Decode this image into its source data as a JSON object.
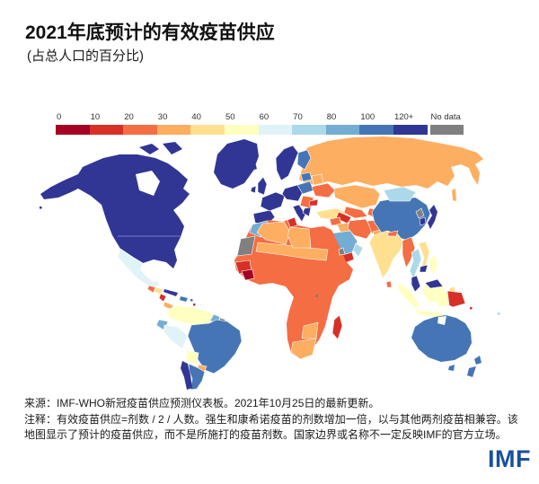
{
  "header": {
    "title": "2021年底预计的有效疫苗供应",
    "subtitle": "(占总人口的百分比)"
  },
  "legend": {
    "bins": [
      {
        "label": "0",
        "color": "#a50026"
      },
      {
        "label": "10",
        "color": "#d73027"
      },
      {
        "label": "20",
        "color": "#f46d43"
      },
      {
        "label": "30",
        "color": "#fdae61"
      },
      {
        "label": "40",
        "color": "#fee090"
      },
      {
        "label": "50",
        "color": "#ffffbf"
      },
      {
        "label": "60",
        "color": "#e0f3f8"
      },
      {
        "label": "70",
        "color": "#abd9e9"
      },
      {
        "label": "80",
        "color": "#74add1"
      },
      {
        "label": "100",
        "color": "#4575b4"
      },
      {
        "label": "120+",
        "color": "#313695"
      }
    ],
    "no_data": {
      "label": "No data",
      "color": "#808080"
    }
  },
  "map": {
    "type": "choropleth-world-map",
    "regions": {
      "greenland": "#313695",
      "arctic-islands": "#313695",
      "north-america": "#313695",
      "hawaii": "#313695",
      "mexico": "#e0f3f8",
      "guatemala": "#f46d43",
      "honduras": "#fee090",
      "nicaragua": "#d73027",
      "costa-rica-panama": "#fdae61",
      "cuba": "#313695",
      "hispaniola": "#4575b4",
      "caribbean-red": "#d73027",
      "caribbean-blue": "#4575b4",
      "colombia-venezuela": "#ffffbf",
      "guyana": "#74add1",
      "suriname": "#808080",
      "ecuador": "#74add1",
      "peru": "#e0f3f8",
      "brazil": "#4575b4",
      "bolivia": "#ffffbf",
      "paraguay": "#fdae61",
      "argentina": "#4575b4",
      "chile": "#313695",
      "iceland": "#313695",
      "uk": "#313695",
      "ireland": "#313695",
      "iberia": "#313695",
      "france": "#313695",
      "central-europe": "#313695",
      "italy": "#313695",
      "scandinavia": "#313695",
      "finland": "#4575b4",
      "baltics": "#4575b4",
      "poland": "#4575b4",
      "belarus": "#fdae61",
      "ukraine": "#f46d43",
      "romania-balkans": "#f46d43",
      "bulgaria": "#d73027",
      "greece": "#313695",
      "turkey": "#fee090",
      "russia": "#fdae61",
      "sakhalin": "#fdae61",
      "kazakhstan": "#fdae61",
      "uzbekistan": "#f46d43",
      "turkmenistan": "#d73027",
      "kyrgyzstan-tajikistan": "#f46d43",
      "syria-levant": "#f46d43",
      "iraq": "#fdae61",
      "iran": "#f46d43",
      "afghanistan": "#f46d43",
      "pakistan": "#fdae61",
      "saudi-arabia": "#74add1",
      "yemen": "#d73027",
      "oman": "#abd9e9",
      "africa-base": "#f46d43",
      "morocco": "#74add1",
      "western-sahara-mauritania": "#808080",
      "algeria": "#fdae61",
      "libya": "#fdae61",
      "sahel-strip": "#fdae61",
      "tunisia": "#d73027",
      "senegal-guinea": "#d73027",
      "west-africa-interior": "#a50026",
      "eritrea": "#808080",
      "burundi": "#808080",
      "botswana-zimbabwe": "#fdae61",
      "south-africa": "#fdae61",
      "madagascar": "#d73027",
      "mongolia": "#abd9e9",
      "china": "#4575b4",
      "north-korea": "#808080",
      "south-korea": "#313695",
      "japan": "#313695",
      "india": "#fee090",
      "nepal": "#f46d43",
      "sri-lanka": "#f46d43",
      "myanmar": "#f46d43",
      "thailand": "#abd9e9",
      "vietnam-laos": "#fee090",
      "cambodia": "#313695",
      "malay-peninsula": "#313695",
      "sumatra": "#ffffbf",
      "java": "#ffffbf",
      "borneo": "#ffffbf",
      "borneo-malaysia": "#313695",
      "sulawesi": "#fee090",
      "philippines": "#ffffbf",
      "new-guinea-west": "#ffffbf",
      "papua-new-guinea": "#d73027",
      "solomon-islands": "#d73027",
      "fiji": "#abd9e9",
      "australia": "#4575b4",
      "tasmania": "#4575b4",
      "new-zealand": "#4575b4"
    }
  },
  "footer": {
    "source": "来源：IMF-WHO新冠疫苗供应预测仪表板。2021年10月25日的最新更新。",
    "note": "注释：有效疫苗供应=剂数 / 2 / 人数。强生和康希诺疫苗的剂数增加一倍，以与其他两剂疫苗相兼容。该地图显示了预计的疫苗供应，而不是所施打的疫苗剂数。国家边界或名称不一定反映IMF的官方立场。",
    "logo": "IMF",
    "logo_color": "#1a4fa0"
  }
}
